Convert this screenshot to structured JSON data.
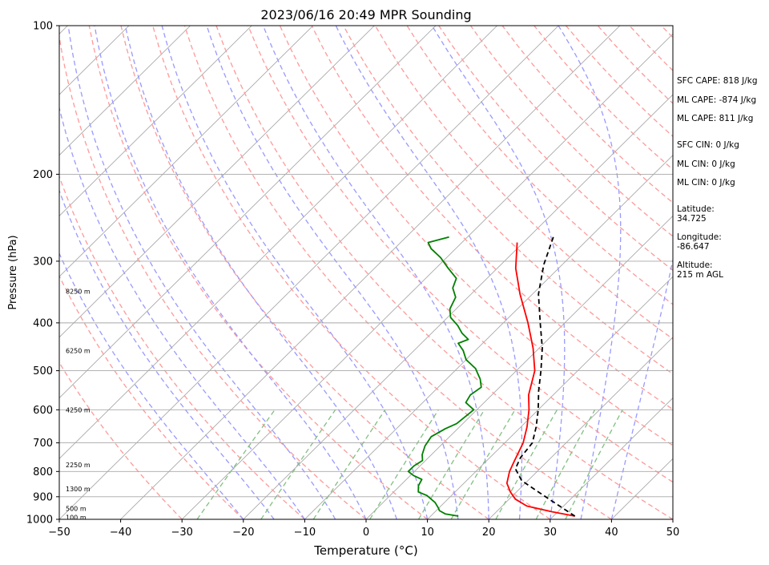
{
  "chart_data": {
    "type": "line",
    "title": "2023/06/16 20:49 MPR Sounding",
    "xlabel": "Temperature (°C)",
    "ylabel": "Pressure (hPa)",
    "xlim": [
      -50,
      50
    ],
    "ylim": [
      1000,
      100
    ],
    "y_scale": "log",
    "grid": true,
    "x_ticks": [
      "−50",
      "−40",
      "−30",
      "−20",
      "−10",
      "0",
      "10",
      "20",
      "30",
      "40",
      "50"
    ],
    "y_ticks": [
      {
        "p": 100,
        "label": "100"
      },
      {
        "p": 200,
        "label": "200"
      },
      {
        "p": 300,
        "label": "300"
      },
      {
        "p": 400,
        "label": "400"
      },
      {
        "p": 500,
        "label": "500"
      },
      {
        "p": 600,
        "label": "600"
      },
      {
        "p": 700,
        "label": "700"
      },
      {
        "p": 800,
        "label": "800"
      },
      {
        "p": 900,
        "label": "900"
      },
      {
        "p": 1000,
        "label": "1000"
      }
    ],
    "height_labels": [
      {
        "p": 990,
        "label": "100 m"
      },
      {
        "p": 950,
        "label": "500 m"
      },
      {
        "p": 868,
        "label": "1300 m"
      },
      {
        "p": 775,
        "label": "2250 m"
      },
      {
        "p": 600,
        "label": "4250 m"
      },
      {
        "p": 455,
        "label": "6250 m"
      },
      {
        "p": 345,
        "label": "8250 m"
      }
    ],
    "series": [
      {
        "key": "temperature",
        "color": "#ff0000",
        "points": [
          [
            33.5,
            985
          ],
          [
            29,
            965
          ],
          [
            24,
            940
          ],
          [
            21,
            910
          ],
          [
            19,
            880
          ],
          [
            17,
            845
          ],
          [
            15.5,
            800
          ],
          [
            14.5,
            760
          ],
          [
            13,
            700
          ],
          [
            11,
            650
          ],
          [
            8.5,
            600
          ],
          [
            6,
            560
          ],
          [
            3,
            500
          ],
          [
            -1,
            450
          ],
          [
            -6,
            400
          ],
          [
            -12,
            350
          ],
          [
            -17,
            310
          ],
          [
            -21,
            275
          ]
        ]
      },
      {
        "key": "dewpoint",
        "color": "#008000",
        "points": [
          [
            14.5,
            985
          ],
          [
            12,
            975
          ],
          [
            10.5,
            960
          ],
          [
            10,
            950
          ],
          [
            8.5,
            925
          ],
          [
            6,
            895
          ],
          [
            4,
            880
          ],
          [
            3,
            855
          ],
          [
            2.5,
            830
          ],
          [
            0.5,
            815
          ],
          [
            -1,
            800
          ],
          [
            -1,
            780
          ],
          [
            -0.5,
            760
          ],
          [
            -1.5,
            740
          ],
          [
            -2.5,
            710
          ],
          [
            -3,
            680
          ],
          [
            -2,
            655
          ],
          [
            -1,
            640
          ],
          [
            -0.5,
            600
          ],
          [
            -3,
            580
          ],
          [
            -3.5,
            560
          ],
          [
            -3,
            540
          ],
          [
            -4.5,
            520
          ],
          [
            -6,
            505
          ],
          [
            -7,
            495
          ],
          [
            -10,
            475
          ],
          [
            -12,
            455
          ],
          [
            -14,
            440
          ],
          [
            -13,
            432
          ],
          [
            -15,
            420
          ],
          [
            -17,
            405
          ],
          [
            -19.5,
            390
          ],
          [
            -21,
            375
          ],
          [
            -22,
            355
          ],
          [
            -24,
            340
          ],
          [
            -25,
            325
          ],
          [
            -28,
            310
          ],
          [
            -31,
            295
          ],
          [
            -34,
            283
          ],
          [
            -35.5,
            275
          ],
          [
            -33,
            268
          ]
        ]
      },
      {
        "key": "parcel",
        "color": "#000000",
        "style": "dashed",
        "points": [
          [
            33.5,
            985
          ],
          [
            26,
            905
          ],
          [
            19,
            835
          ],
          [
            16,
            790
          ],
          [
            15,
            750
          ],
          [
            14.5,
            700
          ],
          [
            12.5,
            650
          ],
          [
            10,
            600
          ],
          [
            7,
            550
          ],
          [
            4,
            500
          ],
          [
            0.5,
            450
          ],
          [
            -4,
            400
          ],
          [
            -9,
            350
          ],
          [
            -13,
            305
          ],
          [
            -16,
            268
          ]
        ]
      }
    ]
  },
  "stats": [
    {
      "text": "SFC CAPE: 818 J/kg"
    },
    {
      "text": "ML CAPE: -874 J/kg"
    },
    {
      "text": "ML CAPE: 811 J/kg"
    },
    {
      "text": "SFC CIN: 0 J/kg"
    },
    {
      "text": "ML CIN: 0 J/kg"
    },
    {
      "text": "ML CIN: 0 J/kg"
    },
    {
      "text": "Latitude:"
    },
    {
      "text": "34.725"
    },
    {
      "text": "Longitude:"
    },
    {
      "text": "-86.647"
    },
    {
      "text": "Altitude:"
    },
    {
      "text": "215 m AGL"
    }
  ],
  "colors": {
    "dry_adiabat": "#ff9999",
    "moist_adiabat": "#9999ff",
    "mixing_ratio": "#80c080",
    "isotherm": "#a0a0a0"
  }
}
